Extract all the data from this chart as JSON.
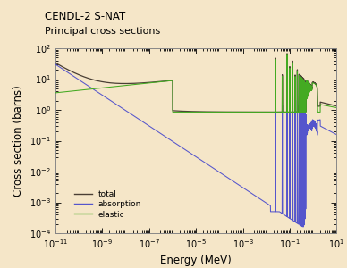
{
  "title_line1": "CENDL-2 S-NAT",
  "title_line2": "Principal cross sections",
  "xlabel": "Energy (MeV)",
  "ylabel": "Cross section (barns)",
  "background_color": "#f5e6c8",
  "xlim_log": [
    -11,
    1
  ],
  "ylim_log": [
    -4,
    2
  ],
  "legend_labels": [
    "total",
    "absorption",
    "elastic"
  ],
  "legend_colors": [
    "#4a3f35",
    "#5555cc",
    "#44aa22"
  ],
  "title_fontsize": 8.5,
  "axis_label_fontsize": 8.5,
  "tick_label_fontsize": 7
}
